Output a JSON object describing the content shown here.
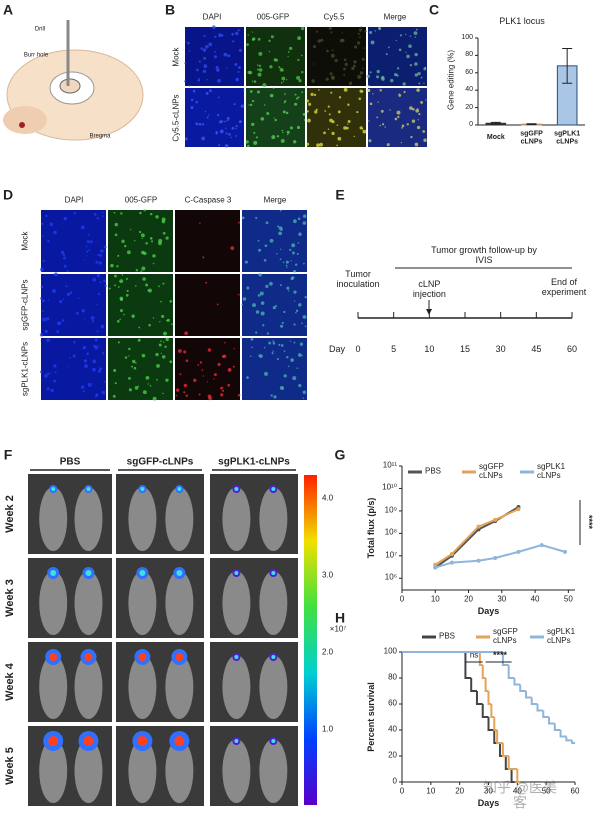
{
  "panel_letters": [
    "A",
    "B",
    "C",
    "D",
    "E",
    "F",
    "G",
    "H"
  ],
  "panel_a": {
    "labels": [
      "Drill",
      "Burr hole",
      "Bregma"
    ]
  },
  "panel_b": {
    "columns": [
      "DAPI",
      "005-GFP",
      "Cy5.5",
      "Merge"
    ],
    "rows": [
      "Mock",
      "Cy5.5-cLNPs"
    ]
  },
  "panel_d": {
    "columns": [
      "DAPI",
      "005-GFP",
      "C-Caspase 3",
      "Merge"
    ],
    "rows": [
      "Mock",
      "sgGFP-cLNPs",
      "sgPLK1-cLNPs"
    ]
  },
  "panel_e": {
    "header": "Tumor growth follow-up by IVIS",
    "events": [
      "Tumor\ninoculation",
      "cLNP\ninjection",
      "End of\nexperiment"
    ],
    "axis_label": "Day",
    "days": [
      "0",
      "5",
      "10",
      "15",
      "30",
      "45",
      "60"
    ]
  },
  "panel_f": {
    "groups": [
      "PBS",
      "sgGFP-cLNPs",
      "sgPLK1-cLNPs"
    ],
    "rows": [
      "Week 2",
      "Week 3",
      "Week 4",
      "Week 5"
    ],
    "colorbar_ticks": [
      "1.0",
      "2.0",
      "3.0",
      "4.0"
    ],
    "colorbar_unit": "×10⁷"
  },
  "chart_data": [
    {
      "type": "bar",
      "title": "PLK1 locus",
      "y_label": "Gene editing (%)",
      "categories": [
        "Mock",
        "sgGFP\ncLNPs",
        "sgPLK1\ncLNPs"
      ],
      "values": [
        2,
        1,
        68
      ],
      "errors": [
        1,
        0.5,
        20
      ],
      "colors": [
        "#333333",
        "#c8925a",
        "#a9c6e6"
      ],
      "ylim": [
        0,
        100
      ],
      "yticks": [
        0,
        20,
        40,
        60,
        80,
        100
      ]
    },
    {
      "type": "line",
      "y_label": "Total flux (p/s)",
      "x_label": "Days",
      "log_y": true,
      "xlim": [
        0,
        52
      ],
      "xticks": [
        0,
        10,
        20,
        30,
        40,
        50
      ],
      "ylim": [
        300000,
        100000000000
      ],
      "yticks": [
        {
          "value": 1000000,
          "label": "10⁶"
        },
        {
          "value": 10000000,
          "label": "10⁷"
        },
        {
          "value": 100000000,
          "label": "10⁸"
        },
        {
          "value": 1000000000,
          "label": "10⁹"
        },
        {
          "value": 10000000000,
          "label": "10¹⁰"
        },
        {
          "value": 100000000000,
          "label": "10¹¹"
        }
      ],
      "series": [
        {
          "name": "PBS",
          "color": "#555555",
          "x": [
            10,
            15,
            23,
            28,
            35
          ],
          "values": [
            3000000,
            10000000,
            150000000,
            350000000,
            1500000000
          ]
        },
        {
          "name": "sgGFP\ncLNPs",
          "color": "#e3a35a",
          "x": [
            10,
            15,
            23,
            28,
            35
          ],
          "values": [
            4000000,
            12000000,
            200000000,
            400000000,
            1200000000
          ]
        },
        {
          "name": "sgPLK1\ncLNPs",
          "color": "#8fb5dc",
          "x": [
            10,
            15,
            23,
            28,
            35,
            42,
            49
          ],
          "values": [
            3000000,
            5000000,
            6000000,
            8000000,
            15000000,
            30000000,
            15000000
          ]
        }
      ],
      "annotations": [
        "****"
      ]
    },
    {
      "type": "step",
      "y_label": "Percent survival",
      "x_label": "Days",
      "xlim": [
        0,
        60
      ],
      "xticks": [
        0,
        10,
        20,
        30,
        40,
        50,
        60
      ],
      "ylim": [
        0,
        100
      ],
      "yticks": [
        0,
        20,
        40,
        60,
        80,
        100
      ],
      "series": [
        {
          "name": "PBS",
          "color": "#444444",
          "x": [
            0,
            20,
            22,
            24,
            26,
            28,
            30,
            32,
            34,
            36,
            38
          ],
          "values": [
            100,
            100,
            80,
            70,
            60,
            50,
            40,
            30,
            20,
            10,
            0
          ]
        },
        {
          "name": "sgGFP\ncLNPs",
          "color": "#e3a35a",
          "x": [
            0,
            25,
            27,
            28,
            29,
            30,
            31,
            32,
            33,
            35,
            37,
            40
          ],
          "values": [
            100,
            100,
            90,
            80,
            70,
            60,
            50,
            40,
            30,
            20,
            10,
            0
          ]
        },
        {
          "name": "sgPLK1\ncLNPs",
          "color": "#8fb5dc",
          "x": [
            0,
            33,
            35,
            37,
            39,
            41,
            43,
            45,
            47,
            49,
            51,
            53,
            55,
            57,
            59
          ],
          "values": [
            100,
            100,
            90,
            80,
            75,
            70,
            65,
            60,
            55,
            50,
            45,
            40,
            35,
            32,
            30
          ]
        }
      ],
      "annotations": [
        "ns",
        "****"
      ]
    }
  ],
  "watermark": "知乎 @医美客"
}
